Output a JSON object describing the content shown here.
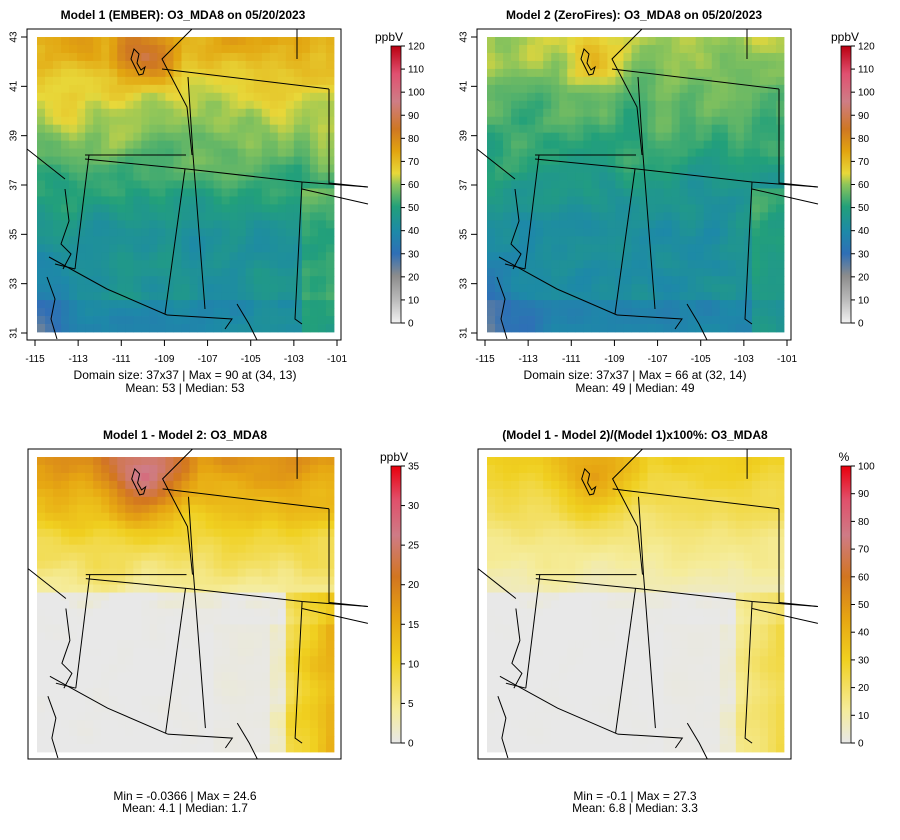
{
  "chart_data": [
    {
      "type": "heatmap",
      "title": "Model 1 (EMBER): O3_MDA8 on 05/20/2023",
      "grid_size": [
        37,
        37
      ],
      "field": {
        "mean": 53,
        "low_south": 34,
        "high_north": 70,
        "hotspot_value": 90,
        "hotspot_cell": [
          34,
          13
        ]
      },
      "xlim": [
        -115,
        -101
      ],
      "ylim": [
        31,
        43
      ],
      "xticks": [
        "-115",
        "-113",
        "-111",
        "-109",
        "-107",
        "-105",
        "-103",
        "-101"
      ],
      "yticks": [
        "31",
        "33",
        "35",
        "37",
        "39",
        "41",
        "43"
      ],
      "colorbar": {
        "unit": "ppbV",
        "min": 0,
        "max": 120,
        "ticks": [
          "0",
          "10",
          "20",
          "30",
          "40",
          "50",
          "60",
          "70",
          "80",
          "90",
          "100",
          "110",
          "120"
        ],
        "scale": "ozone"
      },
      "stats_line1": "Domain size: 37x37 | Max = 90 at (34, 13)",
      "stats_line2": "Mean: 53 |  Median: 53"
    },
    {
      "type": "heatmap",
      "title": "Model 2 (ZeroFires): O3_MDA8 on 05/20/2023",
      "grid_size": [
        37,
        37
      ],
      "field": {
        "mean": 49,
        "low_south": 34,
        "high_north": 58,
        "hotspot_value": 66,
        "hotspot_cell": [
          32,
          14
        ]
      },
      "xlim": [
        -115,
        -101
      ],
      "ylim": [
        31,
        43
      ],
      "xticks": [
        "-115",
        "-113",
        "-111",
        "-109",
        "-107",
        "-105",
        "-103",
        "-101"
      ],
      "yticks": [
        "31",
        "33",
        "35",
        "37",
        "39",
        "41",
        "43"
      ],
      "colorbar": {
        "unit": "ppbV",
        "min": 0,
        "max": 120,
        "ticks": [
          "0",
          "10",
          "20",
          "30",
          "40",
          "50",
          "60",
          "70",
          "80",
          "90",
          "100",
          "110",
          "120"
        ],
        "scale": "ozone"
      },
      "stats_line1": "Domain size: 37x37 | Max = 66 at (32, 14)",
      "stats_line2": "Mean: 49 |  Median: 49"
    },
    {
      "type": "heatmap",
      "title": "Model 1 - Model 2: O3_MDA8",
      "grid_size": [
        37,
        37
      ],
      "field": {
        "min": -0.0366,
        "max": 24.6,
        "mean": 4.1,
        "median": 1.7
      },
      "colorbar": {
        "unit": "ppbV",
        "min": 0,
        "max": 35,
        "ticks": [
          "0",
          "5",
          "10",
          "15",
          "20",
          "25",
          "30",
          "35"
        ],
        "scale": "difference"
      },
      "stats_line1": "Min = -0.0366 | Max = 24.6",
      "stats_line2": "Mean: 4.1 |  Median: 1.7"
    },
    {
      "type": "heatmap",
      "title": "(Model 1 - Model 2)/(Model 1)x100%: O3_MDA8",
      "grid_size": [
        37,
        37
      ],
      "field": {
        "min": -0.1,
        "max": 27.3,
        "mean": 6.8,
        "median": 3.3
      },
      "colorbar": {
        "unit": "%",
        "min": 0,
        "max": 100,
        "ticks": [
          "0",
          "10",
          "20",
          "30",
          "40",
          "50",
          "60",
          "70",
          "80",
          "90",
          "100"
        ],
        "scale": "difference"
      },
      "stats_line1": "Min = -0.1 | Max = 27.3",
      "stats_line2": "Mean: 6.8 |  Median: 3.3"
    }
  ]
}
